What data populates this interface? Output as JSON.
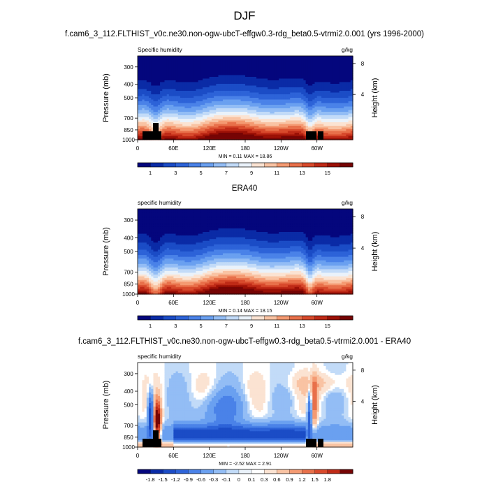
{
  "figure": {
    "title": "DJF",
    "subtitle": "f.cam6_3_112.FLTHIST_v0c.ne30.non-ogw-ubcT-effgw0.3-rdg_beta0.5-vtrmi2.0.001 (yrs 1996-2000)"
  },
  "colors": {
    "abs_scale": [
      "#04067d",
      "#0a2ba6",
      "#1b4cc6",
      "#2d63d8",
      "#4a82e8",
      "#6aa0f0",
      "#93bdf5",
      "#c2dbf8",
      "#eaf2fa",
      "#fbe3d2",
      "#f9c3a3",
      "#f49a72",
      "#e8704a",
      "#d84a2c",
      "#bf2a17",
      "#9c1106",
      "#760404"
    ],
    "diff_scale": [
      "#04067d",
      "#0a2ba6",
      "#1b4cc6",
      "#2d63d8",
      "#4a82e8",
      "#6aa0f0",
      "#93bdf5",
      "#c2dbf8",
      "#eaf2fa",
      "#ffffff",
      "#fbe3d2",
      "#f9c3a3",
      "#f49a72",
      "#e8704a",
      "#d84a2c",
      "#bf2a17",
      "#760404"
    ],
    "topography": "#000000"
  },
  "chart_data": [
    {
      "type": "heatmap",
      "panel": "model",
      "title": "",
      "left_label": "Specific humidity",
      "units": "g/kg",
      "ylabel": "Pressure (mb)",
      "ylabel_right": "Height (km)",
      "xlabel": "",
      "x_ticks": [
        "0",
        "60E",
        "120E",
        "180",
        "120W",
        "60W"
      ],
      "y_ticks": [
        "300",
        "400",
        "500",
        "700",
        "850",
        "1000"
      ],
      "y_ticks_right": [
        "8",
        "4"
      ],
      "ylim": [
        1000,
        250
      ],
      "stats_text": "MIN =   0.11   MAX =  18.86",
      "min": 0.11,
      "max": 18.86,
      "colorbar_labels": [
        "1",
        "3",
        "5",
        "7",
        "9",
        "11",
        "13",
        "15"
      ],
      "surface_q_profile": [
        {
          "lon": 0,
          "q_sfc": 14.5,
          "q_300": 0.6
        },
        {
          "lon": 30,
          "q_sfc": 15.5,
          "q_300": 0.6
        },
        {
          "lon": 60,
          "q_sfc": 17,
          "q_300": 1.0
        },
        {
          "lon": 120,
          "q_sfc": 18,
          "q_300": 1.4
        },
        {
          "lon": 180,
          "q_sfc": 17,
          "q_300": 2.5
        },
        {
          "lon": 240,
          "q_sfc": 16,
          "q_300": 2.0
        },
        {
          "lon": 300,
          "q_sfc": 15,
          "q_300": 1.2
        },
        {
          "lon": 360,
          "q_sfc": 15,
          "q_300": 1.0
        }
      ]
    },
    {
      "type": "heatmap",
      "panel": "obs",
      "title": "ERA40",
      "left_label": "specific humidity",
      "units": "g/kg",
      "ylabel": "Pressure (mb)",
      "ylabel_right": "Height (km)",
      "xlabel": "",
      "x_ticks": [
        "0",
        "60E",
        "120E",
        "180",
        "120W",
        "60W"
      ],
      "y_ticks": [
        "300",
        "400",
        "500",
        "700",
        "850",
        "1000"
      ],
      "y_ticks_right": [
        "8",
        "4"
      ],
      "ylim": [
        1000,
        250
      ],
      "stats_text": "MIN =   0.14   MAX =  18.15",
      "min": 0.14,
      "max": 18.15,
      "colorbar_labels": [
        "1",
        "3",
        "5",
        "7",
        "9",
        "11",
        "13",
        "15"
      ]
    },
    {
      "type": "heatmap",
      "panel": "difference",
      "title": "f.cam6_3_112.FLTHIST_v0c.ne30.non-ogw-ubcT-effgw0.3-rdg_beta0.5-vtrmi2.0.001 - ERA40",
      "left_label": "specific humidity",
      "units": "g/kg",
      "ylabel": "Pressure (mb)",
      "ylabel_right": "Height (km)",
      "xlabel": "",
      "x_ticks": [
        "0",
        "60E",
        "120E",
        "180",
        "120W",
        "60W"
      ],
      "y_ticks": [
        "300",
        "400",
        "500",
        "700",
        "850",
        "1000"
      ],
      "y_ticks_right": [
        "8",
        "4"
      ],
      "ylim": [
        1000,
        250
      ],
      "stats_text": "MIN =  -2.52   MAX =   2.91",
      "min": -2.52,
      "max": 2.91,
      "colorbar_labels": [
        "-1.8",
        "-1.5",
        "-1.2",
        "-0.9",
        "-0.6",
        "-0.3",
        "-0.1",
        "0",
        "0.1",
        "0.3",
        "0.6",
        "0.9",
        "1.2",
        "1.5",
        "1.8"
      ]
    }
  ]
}
